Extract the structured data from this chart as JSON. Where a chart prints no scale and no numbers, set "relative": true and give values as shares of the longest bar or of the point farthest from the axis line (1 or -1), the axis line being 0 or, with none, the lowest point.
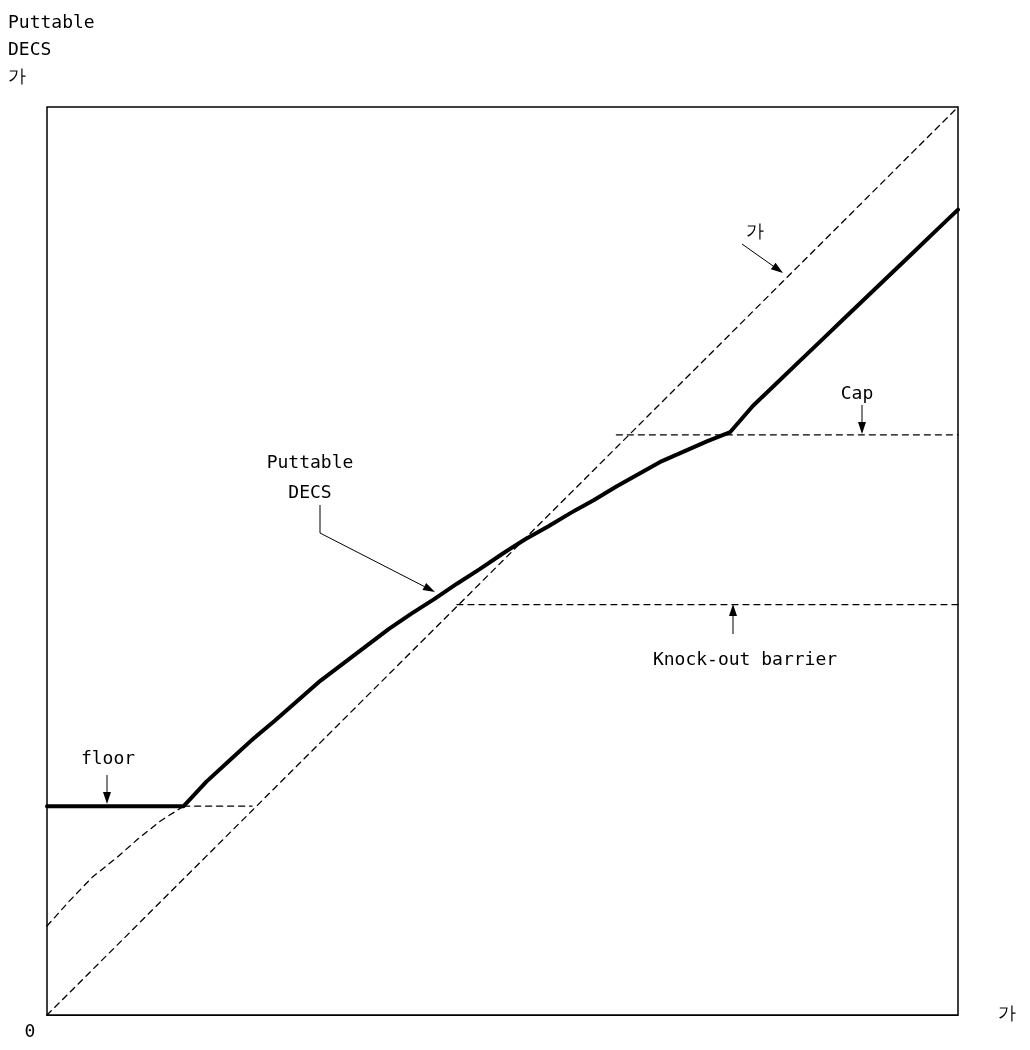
{
  "chart_data": {
    "type": "line",
    "relative": true,
    "xlabel": "가",
    "ylabel": "Puttable\nDECS\n가",
    "marker": "none",
    "categories": [
      null,
      null,
      null,
      null,
      null,
      null,
      null,
      null,
      null,
      null,
      null,
      null,
      null,
      null,
      null,
      null,
      null,
      null,
      null,
      null,
      null,
      null,
      null,
      null,
      null,
      null,
      null,
      null,
      null,
      null,
      null,
      null,
      null,
      null,
      null,
      null,
      null,
      null,
      null,
      null,
      null
    ],
    "series": [
      {
        "color": "#000000",
        "line_style": "solid",
        "values": [
          0.23,
          0.23,
          0.23,
          0.23,
          0.23,
          0.23,
          0.23,
          0.257,
          0.28,
          0.303,
          0.324,
          0.346,
          0.368,
          0.387,
          0.406,
          0.425,
          0.442,
          0.458,
          0.475,
          0.491,
          0.508,
          0.524,
          0.538,
          0.553,
          0.567,
          0.582,
          0.596,
          0.61,
          0.621,
          0.632,
          0.642,
          0.671,
          0.695,
          0.719,
          0.743,
          0.767,
          0.791,
          0.815,
          0.839,
          0.863,
          0.887
        ]
      },
      {
        "color": "#000000",
        "line_style": "dashed",
        "values": [
          0,
          0.025,
          0.05,
          0.075,
          0.1,
          0.125,
          0.15,
          0.175,
          0.2,
          0.225,
          0.25,
          0.275,
          0.3,
          0.325,
          0.35,
          0.375,
          0.4,
          0.425,
          0.45,
          0.475,
          0.5,
          0.525,
          0.55,
          0.575,
          0.6,
          0.625,
          0.65,
          0.675,
          0.7,
          0.725,
          0.75,
          0.775,
          0.8,
          0.825,
          0.85,
          0.875,
          0.9,
          0.925,
          0.95,
          0.975,
          1
        ]
      },
      {
        "color": "#000000",
        "line_style": "dashed",
        "values": [
          0.098,
          0.126,
          0.152,
          0.172,
          0.194,
          0.214,
          0.23,
          null,
          null,
          null,
          null,
          null,
          null,
          null,
          null,
          null,
          null,
          null,
          null,
          null,
          null,
          null,
          null,
          null,
          null,
          null,
          null,
          null,
          null,
          null,
          null,
          null,
          null,
          null,
          null,
          null,
          null,
          null,
          null,
          null,
          null
        ]
      },
      {
        "color": "#000000",
        "line_style": "dashed",
        "values": [
          null,
          null,
          null,
          null,
          null,
          null,
          0.23,
          0.23,
          0.23,
          0.23,
          null,
          null,
          null,
          null,
          null,
          null,
          null,
          null,
          null,
          null,
          null,
          null,
          null,
          null,
          null,
          null,
          null,
          null,
          null,
          null,
          null,
          null,
          null,
          null,
          null,
          null,
          null,
          null,
          null,
          null,
          null
        ]
      },
      {
        "color": "#000000",
        "line_style": "dashed",
        "values": [
          null,
          null,
          null,
          null,
          null,
          null,
          null,
          null,
          null,
          null,
          null,
          null,
          null,
          null,
          null,
          null,
          null,
          null,
          0.452,
          0.452,
          0.452,
          0.452,
          0.452,
          0.452,
          0.452,
          0.452,
          0.452,
          0.452,
          0.452,
          0.452,
          0.452,
          0.452,
          0.452,
          0.452,
          0.452,
          0.452,
          0.452,
          0.452,
          0.452,
          0.452,
          0.452
        ]
      },
      {
        "color": "#000000",
        "line_style": "dashed",
        "values": [
          null,
          null,
          null,
          null,
          null,
          null,
          null,
          null,
          null,
          null,
          null,
          null,
          null,
          null,
          null,
          null,
          null,
          null,
          null,
          null,
          null,
          null,
          null,
          null,
          null,
          0.639,
          0.639,
          0.639,
          0.639,
          0.639,
          0.639,
          0.639,
          0.639,
          0.639,
          0.639,
          0.639,
          0.639,
          0.639,
          0.639,
          0.639,
          0.639
        ]
      }
    ],
    "annotations": [
      "Puttable\nDECS",
      "가",
      "Cap",
      "Knock-out barrier",
      "floor",
      "0"
    ]
  }
}
